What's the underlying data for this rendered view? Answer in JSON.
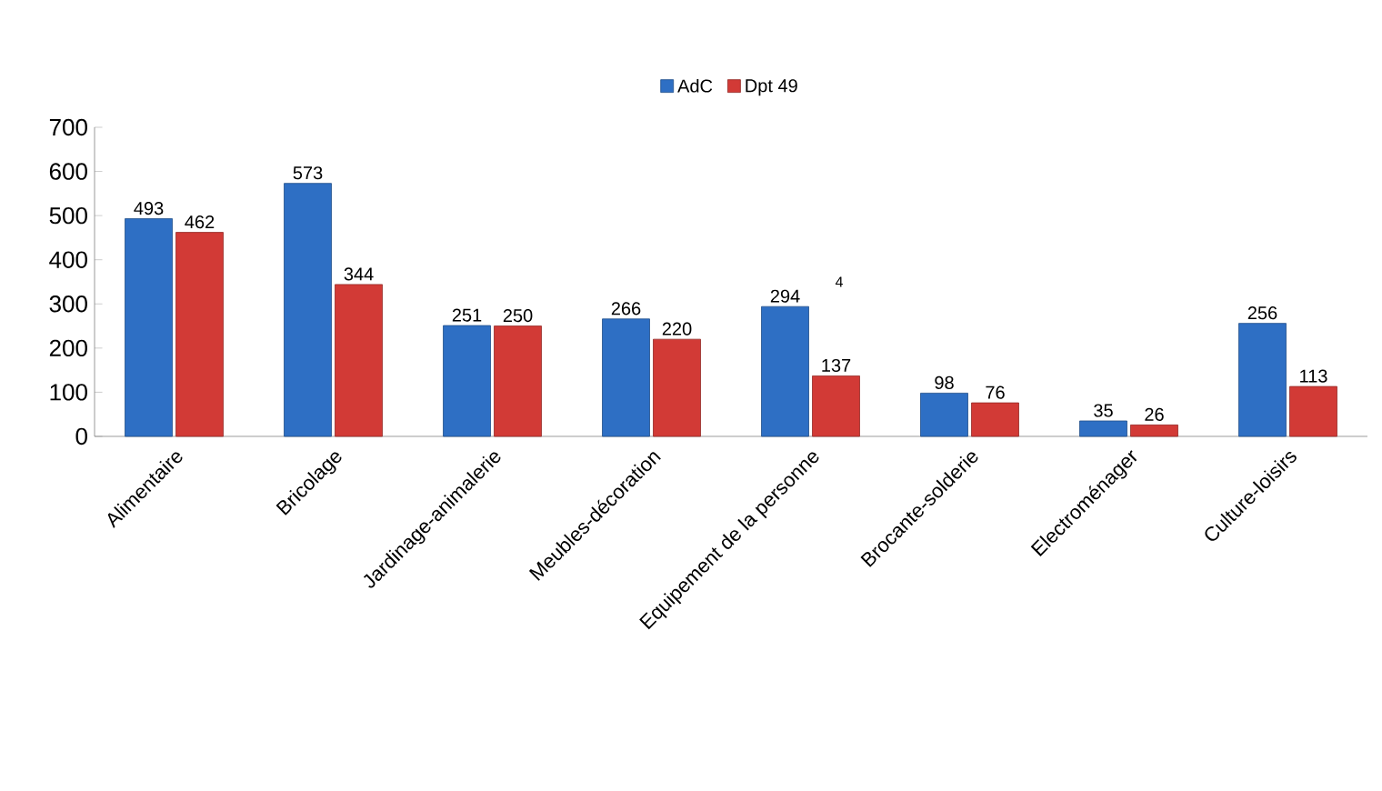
{
  "chart_data": {
    "type": "bar",
    "categories": [
      "Alimentaire",
      "Bricolage",
      "Jardinage-animalerie",
      "Meubles-décoration",
      "Equipement de la personne",
      "Brocante-solderie",
      "Electroménager",
      "Culture-loisirs"
    ],
    "series": [
      {
        "name": "AdC",
        "color": "#2e6fc4",
        "values": [
          493,
          573,
          251,
          266,
          294,
          98,
          35,
          256
        ]
      },
      {
        "name": "Dpt 49",
        "color": "#d23a36",
        "values": [
          462,
          344,
          250,
          220,
          137,
          76,
          26,
          113
        ]
      }
    ],
    "ylim": [
      0,
      700
    ],
    "yticks": [
      0,
      100,
      200,
      300,
      400,
      500,
      600,
      700
    ],
    "data_labels": true,
    "legend": "top",
    "grid": false,
    "annotations": [
      "4"
    ]
  }
}
